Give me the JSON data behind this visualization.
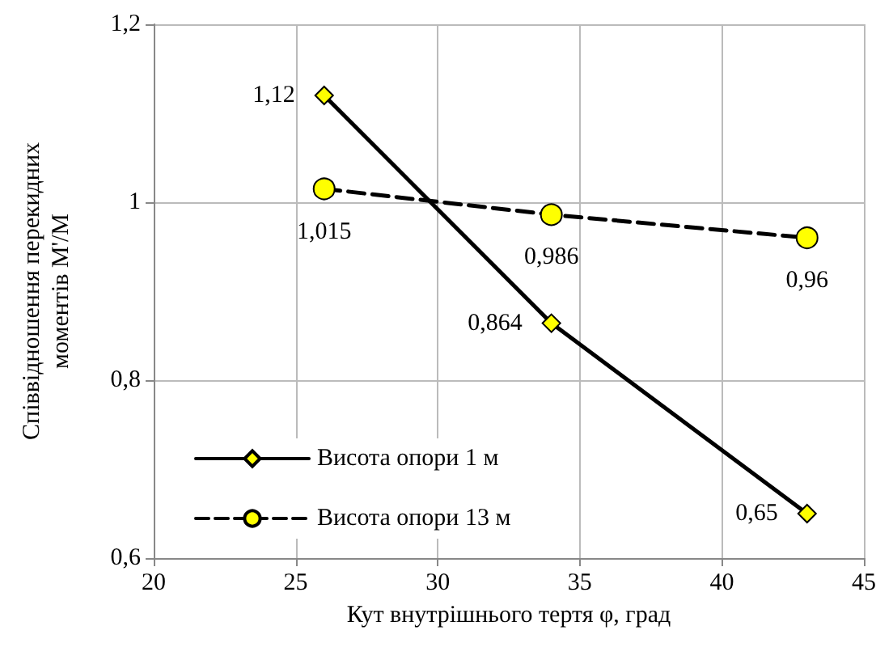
{
  "chart_data": {
    "type": "line",
    "xlabel": "Кут внутрішнього тертя φ, град",
    "ylabel": "Співвідношення перекидних\nмоментів М'/М",
    "x": [
      26,
      34,
      43
    ],
    "series": [
      {
        "name": "Висота опори 1 м",
        "color": "#000000",
        "colors": [
          "#ffff00",
          "#ffff00",
          "#ffff00"
        ],
        "marker": "diamond",
        "line_style": "solid",
        "values": [
          1.12,
          0.864,
          0.65
        ],
        "value_labels": [
          "1,12",
          "0,864",
          "0,65"
        ]
      },
      {
        "name": "Висота опори 13 м",
        "color": "#000000",
        "colors": [
          "#ffff00",
          "#ffff00",
          "#ffff00"
        ],
        "marker": "circle",
        "line_style": "dashed",
        "values": [
          1.015,
          0.986,
          0.96
        ],
        "value_labels": [
          "1,015",
          "0,986",
          "0,96"
        ]
      }
    ],
    "xlim": [
      20,
      45
    ],
    "xticks": [
      20,
      25,
      30,
      35,
      40,
      45
    ],
    "ylim": [
      0.6,
      1.2
    ],
    "yticks": [
      {
        "value": 0.6,
        "label": "0,6"
      },
      {
        "value": 0.8,
        "label": "0,8"
      },
      {
        "value": 1,
        "label": "1"
      },
      {
        "value": 1.2,
        "label": "1,2"
      }
    ],
    "grid": true,
    "legend": "bottom left"
  }
}
